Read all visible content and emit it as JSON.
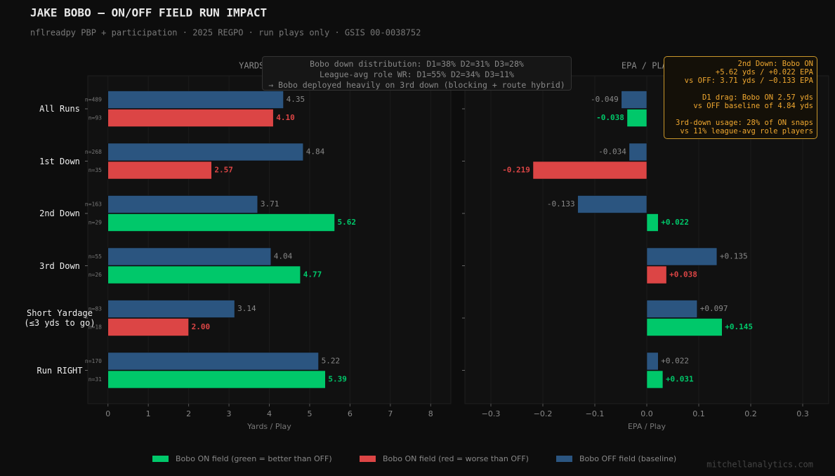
{
  "title": "JAKE BOBO — ON/OFF FIELD RUN IMPACT",
  "subtitle": "nflreadpy PBP + participation · 2025 REGPO · run plays only · GSIS 00-0038752",
  "footer": "mitchellanalytics.com",
  "legend": [
    {
      "name": "Bobo ON field (green = better than OFF)",
      "color": "#00c86a"
    },
    {
      "name": "Bobo ON field (red = worse than OFF)",
      "color": "#dc4545"
    },
    {
      "name": "Bobo OFF field (baseline)",
      "color": "#2b5580"
    }
  ],
  "chart_data": [
    {
      "type": "barh",
      "title": "YARDS / PLAY",
      "x_label": "Yards / Play",
      "categories": [
        "All Runs",
        "1st Down",
        "2nd Down",
        "3rd Down",
        "Short Yardage\n(≤3 yds to go)",
        "Run RIGHT"
      ],
      "xlim": [
        -0.5,
        8.5
      ],
      "xticks": [
        0,
        1,
        2,
        3,
        4,
        5,
        6,
        7,
        8
      ],
      "grid": true,
      "series": [
        {
          "color": "#2b5580",
          "values": [
            4.35,
            4.84,
            3.71,
            4.04,
            3.14,
            5.22
          ],
          "value_labels": [
            "4.35",
            "4.84",
            "3.71",
            "4.04",
            "3.14",
            "5.22"
          ],
          "n_labels": [
            "n=489",
            "n=268",
            "n=163",
            "n=55",
            "n=83",
            "n=170"
          ]
        },
        {
          "colors": [
            "#dc4545",
            "#dc4545",
            "#00c86a",
            "#00c86a",
            "#dc4545",
            "#00c86a"
          ],
          "values": [
            4.1,
            2.57,
            5.62,
            4.77,
            2.0,
            5.39
          ],
          "value_labels": [
            "4.10",
            "2.57",
            "5.62",
            "4.77",
            "2.00",
            "5.39"
          ],
          "n_labels": [
            "n=93",
            "n=35",
            "n=29",
            "n=26",
            "n=18",
            "n=31"
          ]
        }
      ],
      "annotation": [
        "Bobo down distribution: D1=38%  D2=31%  D3=28%",
        "League-avg role WR: D1=55%  D2=34%  D3=11%",
        "→ Bobo deployed heavily on 3rd down (blocking + route hybrid)"
      ]
    },
    {
      "type": "barh",
      "title": "EPA / PLAY",
      "x_label": "EPA / Play",
      "xlim": [
        -0.35,
        0.35
      ],
      "xticks": [
        {
          "value": -0.3,
          "label": "−0.3"
        },
        {
          "value": -0.2,
          "label": "−0.2"
        },
        {
          "value": -0.1,
          "label": "−0.1"
        },
        {
          "value": 0,
          "label": "0.0"
        },
        0.1,
        0.2,
        0.3
      ],
      "grid": true,
      "series": [
        {
          "color": "#2b5580",
          "values": [
            -0.049,
            -0.034,
            -0.133,
            0.135,
            0.097,
            0.022
          ],
          "value_labels": [
            "-0.049",
            "-0.034",
            "-0.133",
            "+0.135",
            "+0.097",
            "+0.022"
          ]
        },
        {
          "colors": [
            "#00c86a",
            "#dc4545",
            "#00c86a",
            "#dc4545",
            "#00c86a",
            "#00c86a"
          ],
          "values": [
            -0.038,
            -0.219,
            0.022,
            0.038,
            0.145,
            0.031
          ],
          "value_labels": [
            "-0.038",
            "-0.219",
            "+0.022",
            "+0.038",
            "+0.145",
            "+0.031"
          ]
        }
      ],
      "annotation": [
        "2nd Down: Bobo ON\n+5.62 yds  /  +0.022 EPA\nvs OFF: 3.71 yds / −0.133 EPA",
        "D1 drag: Bobo ON 2.57 yds\nvs OFF baseline of 4.84 yds",
        "3rd-down usage: 28% of ON snaps\nvs 11% league-avg role players"
      ]
    }
  ]
}
